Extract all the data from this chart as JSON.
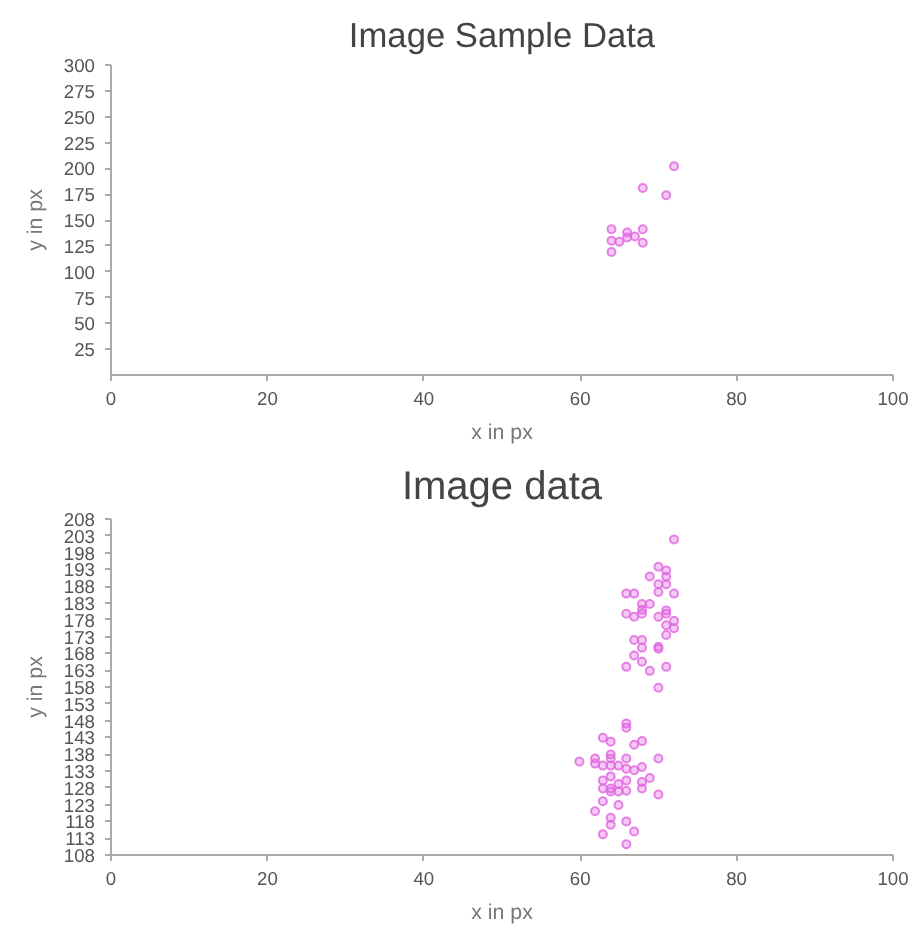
{
  "chart_data": [
    {
      "type": "scatter",
      "title": "Image Sample Data",
      "xlabel": "x in px",
      "ylabel": "y in px",
      "marker": "circle",
      "grid": false,
      "xlim": [
        0,
        100
      ],
      "ylim": [
        0,
        300
      ],
      "xticks": [
        0,
        20,
        40,
        60,
        80,
        100
      ],
      "yticks": [
        25,
        50,
        75,
        100,
        125,
        150,
        175,
        200,
        225,
        250,
        275,
        300
      ],
      "series": [
        {
          "color": "#e066e0",
          "x": [
            64,
            64,
            64,
            65,
            66,
            66,
            67,
            68,
            68,
            68,
            71,
            72
          ],
          "values": [
            141,
            130,
            119,
            129,
            138,
            133,
            134,
            141,
            128,
            181,
            174,
            202
          ]
        }
      ]
    },
    {
      "type": "scatter",
      "title": "Image data",
      "xlabel": "x in px",
      "ylabel": "y in px",
      "marker": "circle",
      "grid": false,
      "xlim": [
        0,
        100
      ],
      "ylim": [
        108,
        208
      ],
      "xticks": [
        0,
        20,
        40,
        60,
        80,
        100
      ],
      "yticks": [
        108,
        113,
        118,
        123,
        128,
        133,
        138,
        143,
        148,
        153,
        158,
        163,
        168,
        173,
        178,
        183,
        188,
        193,
        198,
        203,
        208
      ],
      "series": [
        {
          "color": "#e066e0",
          "x": [
            72.0,
            70.0,
            71.0,
            71.0,
            68.9,
            70.0,
            71.0,
            70.0,
            65.9,
            66.9,
            72.0,
            67.9,
            67.9,
            68.9,
            65.9,
            66.9,
            67.9,
            70.0,
            71.0,
            71.0,
            72.0,
            71.0,
            72.0,
            71.0,
            66.9,
            67.9,
            67.9,
            70.0,
            70.0,
            66.9,
            71.0,
            65.9,
            67.9,
            68.9,
            70.0,
            65.9,
            65.9,
            66.9,
            67.9,
            62.9,
            63.9,
            61.9,
            61.9,
            59.9,
            63.9,
            63.9,
            65.9,
            70.0,
            62.9,
            63.9,
            64.9,
            65.9,
            66.9,
            67.9,
            63.9,
            62.9,
            64.9,
            65.9,
            67.9,
            68.9,
            67.9,
            62.9,
            63.9,
            63.9,
            64.9,
            65.9,
            70.0,
            62.9,
            64.9,
            61.9,
            63.9,
            63.9,
            65.9,
            66.9,
            62.9,
            65.9
          ],
          "values": [
            201.9,
            193.8,
            192.7,
            190.8,
            190.9,
            188.6,
            188.6,
            186.3,
            185.8,
            185.8,
            185.8,
            182.7,
            181.0,
            182.7,
            179.8,
            178.9,
            179.8,
            178.9,
            180.8,
            179.8,
            177.7,
            176.4,
            175.5,
            173.5,
            172.0,
            172.0,
            169.7,
            170.0,
            169.4,
            167.4,
            164.0,
            164.0,
            165.5,
            162.8,
            157.8,
            147.1,
            145.9,
            140.8,
            141.9,
            142.9,
            141.7,
            136.7,
            135.2,
            135.8,
            137.9,
            136.7,
            136.7,
            136.7,
            134.6,
            134.6,
            134.6,
            133.7,
            133.2,
            134.2,
            131.4,
            130.2,
            129.1,
            130.2,
            129.7,
            130.9,
            127.8,
            127.8,
            127.8,
            126.9,
            126.9,
            127.1,
            126.0,
            124.0,
            122.9,
            121.0,
            119.1,
            117.0,
            118.0,
            115.0,
            114.2,
            111.2
          ]
        }
      ]
    }
  ]
}
